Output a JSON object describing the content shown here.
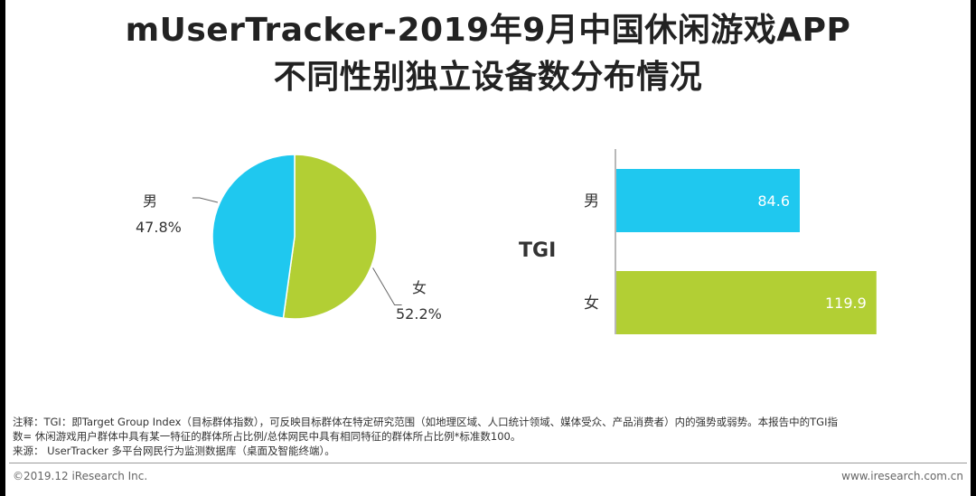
{
  "header": {
    "title_line1": "mUserTracker-2019年9月中国休闲游戏APP",
    "title_line2": "不同性别独立设备数分布情况"
  },
  "colors": {
    "male": "#1FC8EF",
    "female": "#B2CF34"
  },
  "chart_data": [
    {
      "type": "pie",
      "slices": [
        {
          "label": "男",
          "value": 47.8,
          "display": "47.8%"
        },
        {
          "label": "女",
          "value": 52.2,
          "display": "52.2%"
        }
      ]
    },
    {
      "type": "bar",
      "orientation": "horizontal",
      "axis_label": "TGI",
      "categories": [
        "男",
        "女"
      ],
      "values": [
        84.6,
        119.9
      ],
      "value_labels": [
        "84.6",
        "119.9"
      ]
    }
  ],
  "notes": {
    "line1": "注释：TGI：即Target Group Index（目标群体指数），可反映目标群体在特定研究范围（如地理区域、人口统计领域、媒体受众、产品消费者）内的强势或弱势。本报告中的TGI指",
    "line2": "数= 休闲游戏用户群体中具有某一特征的群体所占比例/总体网民中具有相同特征的群体所占比例*标准数100。",
    "source": "来源： UserTracker 多平台网民行为监测数据库（桌面及智能终端）。"
  },
  "footer": {
    "copyright": "©2019.12 iResearch Inc.",
    "website": "www.iresearch.com.cn"
  }
}
